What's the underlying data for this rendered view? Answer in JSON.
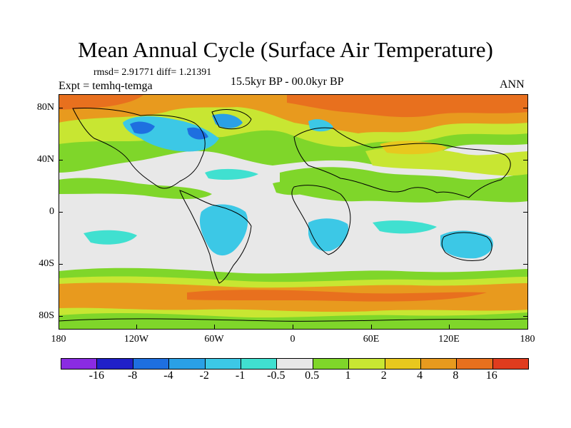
{
  "title": "Mean Annual Cycle (Surface Air Temperature)",
  "stats": "rmsd= 2.91771 diff= 1.21391",
  "experiment": "Expt = temhq-temga",
  "period": "15.5kyr BP - 00.0kyr BP",
  "season": "ANN",
  "lat_labels": [
    "80N",
    "40N",
    "0",
    "40S",
    "80S"
  ],
  "lon_labels": [
    "180",
    "120W",
    "60W",
    "0",
    "60E",
    "120E",
    "180"
  ],
  "colorbar": {
    "colors": [
      "#8a2be2",
      "#2020c8",
      "#1e6fe0",
      "#2aa0e6",
      "#3cc8e6",
      "#40e0d0",
      "#e8e8e8",
      "#7fd62a",
      "#c8e632",
      "#e8c81e",
      "#e89a1e",
      "#e8701e",
      "#e03c1e"
    ],
    "labels": [
      "-16",
      "-8",
      "-4",
      "-2",
      "-1",
      "-0.5",
      "0.5",
      "1",
      "2",
      "4",
      "8",
      "16"
    ]
  }
}
